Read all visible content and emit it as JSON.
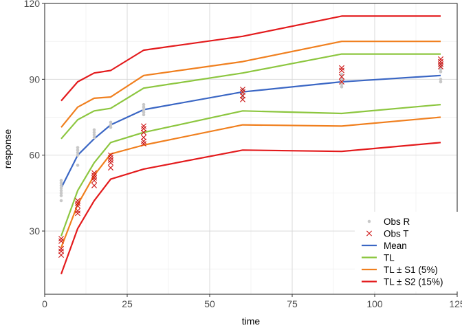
{
  "chart_data": {
    "type": "line",
    "xlabel": "time",
    "ylabel": "response",
    "xlim": [
      0,
      125
    ],
    "ylim": [
      5,
      120
    ],
    "x_ticks": [
      0,
      25,
      50,
      75,
      100,
      125
    ],
    "y_ticks": [
      30,
      60,
      90,
      120
    ],
    "grid": true,
    "legend_position": "bottom-right",
    "x": [
      5,
      10,
      15,
      20,
      30,
      60,
      90,
      120
    ],
    "series": [
      {
        "name": "Mean",
        "color": "#3a66c4",
        "values": [
          47,
          60,
          66.5,
          72,
          78,
          85,
          89,
          91.5
        ]
      },
      {
        "name": "TL",
        "color": "#8cc63f",
        "values": [
          66.5,
          74,
          77.5,
          78.5,
          86.5,
          92.5,
          100,
          100
        ]
      },
      {
        "name": "TL",
        "color": "#8cc63f",
        "values": [
          28,
          46,
          57,
          65,
          69,
          77.5,
          76.5,
          80
        ]
      },
      {
        "name": "TL ± S1 (5%)",
        "color": "#f07f1e",
        "values": [
          71,
          79,
          82.5,
          83,
          91.5,
          97,
          105,
          105
        ]
      },
      {
        "name": "TL ± S1 (5%)",
        "color": "#f07f1e",
        "values": [
          23.5,
          40.5,
          52,
          60.5,
          64,
          72,
          71.5,
          75
        ]
      },
      {
        "name": "TL  ± S2 (15%)",
        "color": "#e31a1c",
        "values": [
          81.5,
          89,
          92.5,
          93.5,
          101.5,
          107,
          115,
          115
        ]
      },
      {
        "name": "TL  ± S2 (15%)",
        "color": "#e31a1c",
        "values": [
          13,
          31,
          42,
          50.5,
          54.5,
          62,
          61.5,
          65
        ]
      }
    ],
    "observations": {
      "Obs R": {
        "color": "#c8c8c8",
        "points": [
          [
            5,
            42
          ],
          [
            5,
            44
          ],
          [
            5,
            45
          ],
          [
            5,
            46
          ],
          [
            5,
            47
          ],
          [
            5,
            48
          ],
          [
            5,
            49
          ],
          [
            5,
            50
          ],
          [
            10,
            56
          ],
          [
            10,
            60
          ],
          [
            10,
            61
          ],
          [
            10,
            62
          ],
          [
            10,
            63
          ],
          [
            15,
            67
          ],
          [
            15,
            68
          ],
          [
            15,
            69
          ],
          [
            15,
            70
          ],
          [
            20,
            71
          ],
          [
            20,
            72
          ],
          [
            20,
            73
          ],
          [
            30,
            76
          ],
          [
            30,
            77
          ],
          [
            30,
            78
          ],
          [
            30,
            79
          ],
          [
            30,
            80
          ],
          [
            60,
            83
          ],
          [
            60,
            84
          ],
          [
            60,
            85
          ],
          [
            60,
            86
          ],
          [
            90,
            87
          ],
          [
            90,
            88
          ],
          [
            90,
            89
          ],
          [
            90,
            90
          ],
          [
            90,
            92
          ],
          [
            120,
            89
          ],
          [
            120,
            90
          ],
          [
            120,
            93
          ],
          [
            120,
            94
          ],
          [
            120,
            95
          ],
          [
            120,
            96
          ]
        ]
      },
      "Obs T": {
        "color": "#cc1111",
        "points": [
          [
            5,
            20.5
          ],
          [
            5,
            22
          ],
          [
            5,
            23
          ],
          [
            5,
            26
          ],
          [
            5,
            27
          ],
          [
            10,
            37
          ],
          [
            10,
            38
          ],
          [
            10,
            40
          ],
          [
            10,
            41
          ],
          [
            10,
            42
          ],
          [
            15,
            48
          ],
          [
            15,
            50
          ],
          [
            15,
            51
          ],
          [
            15,
            52
          ],
          [
            15,
            53
          ],
          [
            20,
            55
          ],
          [
            20,
            57
          ],
          [
            20,
            58
          ],
          [
            20,
            59
          ],
          [
            20,
            60
          ],
          [
            30,
            64.5
          ],
          [
            30,
            65.5
          ],
          [
            30,
            67
          ],
          [
            30,
            69
          ],
          [
            30,
            70.5
          ],
          [
            30,
            71.5
          ],
          [
            60,
            82
          ],
          [
            60,
            83.5
          ],
          [
            60,
            85
          ],
          [
            60,
            86
          ],
          [
            90,
            89
          ],
          [
            90,
            91
          ],
          [
            90,
            93.5
          ],
          [
            90,
            94.5
          ],
          [
            120,
            95
          ],
          [
            120,
            96
          ],
          [
            120,
            97
          ],
          [
            120,
            98
          ]
        ]
      }
    },
    "legend": [
      {
        "label": "Obs R",
        "kind": "point",
        "color": "#c8c8c8"
      },
      {
        "label": "Obs T",
        "kind": "cross",
        "color": "#cc1111"
      },
      {
        "label": "Mean",
        "kind": "line",
        "color": "#3a66c4"
      },
      {
        "label": "TL",
        "kind": "line",
        "color": "#8cc63f"
      },
      {
        "label": "TL ± S1 (5%)",
        "kind": "line",
        "color": "#f07f1e"
      },
      {
        "label": "TL  ± S2 (15%)",
        "kind": "line",
        "color": "#e31a1c"
      }
    ]
  }
}
